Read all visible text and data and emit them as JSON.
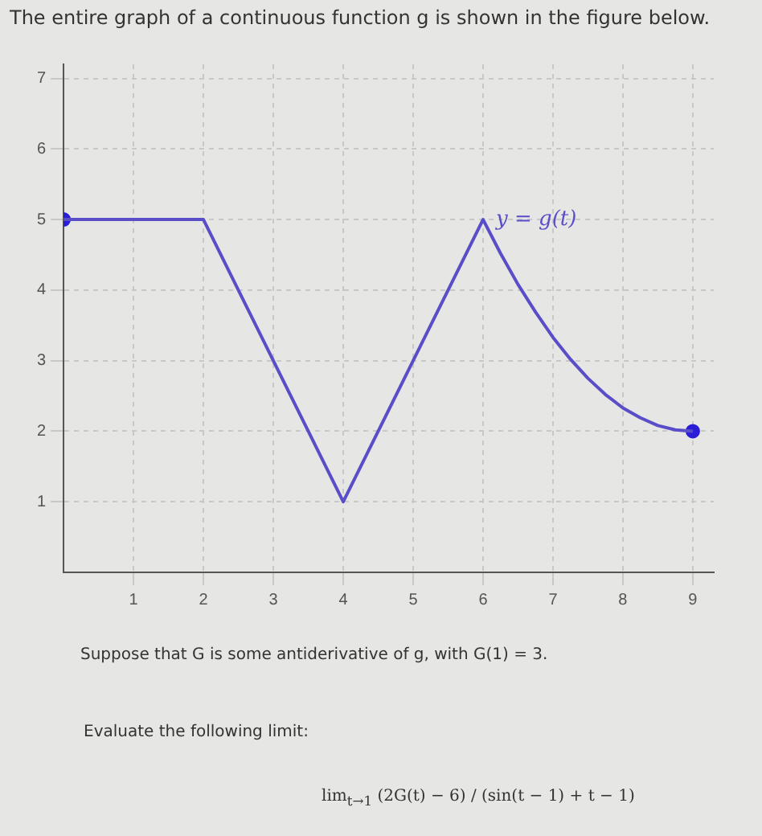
{
  "chart_data": {
    "type": "line",
    "title": "The entire graph of a continuous function g is shown in the figure below.",
    "series": [
      {
        "name": "y = g(t)",
        "type": "line",
        "color": "#5a4ec8",
        "marker": "none",
        "x": [
          0,
          2,
          4,
          6,
          6.25,
          6.5,
          6.75,
          7,
          7.25,
          7.5,
          7.75,
          8,
          8.25,
          8.5,
          8.75,
          9
        ],
        "values": [
          5,
          5,
          1,
          5,
          4.52,
          4.08,
          3.69,
          3.33,
          3.02,
          2.75,
          2.52,
          2.33,
          2.19,
          2.08,
          2.02,
          2
        ]
      },
      {
        "type": "scatter",
        "color": "#2a1fd6",
        "marker": "circle",
        "x": [
          0,
          9
        ],
        "values": [
          5,
          2
        ]
      }
    ],
    "xlim": [
      0,
      9.3
    ],
    "ylim": [
      0,
      7.2
    ],
    "xticks": [
      1,
      2,
      3,
      4,
      5,
      6,
      7,
      8,
      9
    ],
    "yticks": [
      1,
      2,
      3,
      4,
      5,
      6,
      7
    ],
    "grid": true,
    "line_style": "solid",
    "annotations": [
      "Suppose that G is some antiderivative of g, with G(1) = 3.",
      "Evaluate the following limit:",
      "lim$_{t→1}$ (2G(t) − 6) / (sin(t − 1) + t − 1)"
    ]
  }
}
